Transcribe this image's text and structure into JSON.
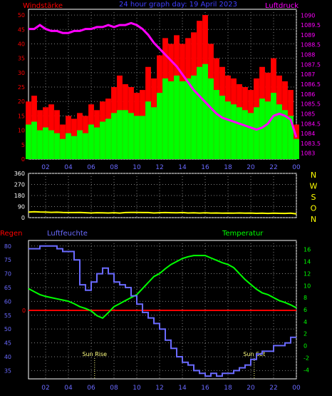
{
  "colors": {
    "background": "#000000",
    "grid": "#808080",
    "axis_red": "#ff0000",
    "axis_magenta": "#ff00ff",
    "axis_blue": "#6a6aff",
    "axis_green": "#00ff00",
    "axis_yellow": "#ffff00",
    "sun_marker": "#ffff80"
  },
  "chart_data": [
    {
      "id": "wind",
      "type": "bar",
      "title": "24 hour graph day: 19 April 2023",
      "left_label": "Windstärke",
      "right_label": "Luftdruck",
      "x_ticks": [
        "02",
        "04",
        "06",
        "08",
        "10",
        "12",
        "14",
        "16",
        "18",
        "20",
        "22",
        "00"
      ],
      "left_ticks": [
        "0",
        "5",
        "10",
        "15",
        "20",
        "25",
        "30",
        "35",
        "40",
        "45",
        "50"
      ],
      "right_ticks": [
        "1083",
        "1083.5",
        "1084",
        "1084.5",
        "1085",
        "1085.5",
        "1086",
        "1086.5",
        "1087",
        "1087.5",
        "1088",
        "1088.5",
        "1089",
        "1089.5",
        "1090"
      ],
      "xlim": [
        0.5,
        24
      ],
      "ylim_left": [
        0,
        52
      ],
      "ylim_right": [
        1082.7,
        1090.3
      ],
      "series": [
        {
          "name": "Windstärke",
          "style": "gust_bars_red",
          "x": [
            0.5,
            1,
            1.5,
            2,
            2.5,
            3,
            3.5,
            4,
            4.5,
            5,
            5.5,
            6,
            6.5,
            7,
            7.5,
            8,
            8.5,
            9,
            9.5,
            10,
            10.5,
            11,
            11.5,
            12,
            12.5,
            13,
            13.5,
            14,
            14.5,
            15,
            15.5,
            16,
            16.5,
            17,
            17.5,
            18,
            18.5,
            19,
            19.5,
            20,
            20.5,
            21,
            21.5,
            22,
            22.5,
            23,
            23.5,
            24
          ],
          "values": [
            20,
            22,
            17,
            18,
            19,
            17,
            12,
            15,
            14,
            16,
            15,
            19,
            17,
            20,
            21,
            25,
            29,
            26,
            25,
            23,
            24,
            32,
            28,
            36,
            42,
            40,
            43,
            40,
            42,
            44,
            48,
            50,
            40,
            35,
            32,
            29,
            28,
            26,
            25,
            24,
            28,
            32,
            30,
            35,
            29,
            27,
            24,
            12
          ]
        },
        {
          "name": "Windstärke",
          "style": "mean_bars_green",
          "x": [
            0.5,
            1,
            1.5,
            2,
            2.5,
            3,
            3.5,
            4,
            4.5,
            5,
            5.5,
            6,
            6.5,
            7,
            7.5,
            8,
            8.5,
            9,
            9.5,
            10,
            10.5,
            11,
            11.5,
            12,
            12.5,
            13,
            13.5,
            14,
            14.5,
            15,
            15.5,
            16,
            16.5,
            17,
            17.5,
            18,
            18.5,
            19,
            19.5,
            20,
            20.5,
            21,
            21.5,
            22,
            22.5,
            23,
            23.5,
            24
          ],
          "values": [
            12,
            13,
            10,
            11,
            10,
            9,
            7,
            9,
            8,
            10,
            9,
            12,
            11,
            13,
            14,
            16,
            17,
            17,
            16,
            15,
            15,
            20,
            18,
            23,
            28,
            27,
            29,
            27,
            28,
            29,
            32,
            33,
            28,
            24,
            22,
            20,
            19,
            18,
            17,
            16,
            18,
            21,
            20,
            23,
            19,
            17,
            15,
            7
          ]
        },
        {
          "name": "Luftdruck",
          "style": "line_magenta",
          "x": [
            0.5,
            1.0,
            1.5,
            2.0,
            2.5,
            3.0,
            3.5,
            4.0,
            4.5,
            5.0,
            5.5,
            6.0,
            6.5,
            7.0,
            7.5,
            8.0,
            8.5,
            9.0,
            9.5,
            10.0,
            10.5,
            11.0,
            11.5,
            12.0,
            12.5,
            13.0,
            13.5,
            14.0,
            14.5,
            15.0,
            15.5,
            16.0,
            16.5,
            17.0,
            17.5,
            18.0,
            18.5,
            19.0,
            19.5,
            20.0,
            20.5,
            21.0,
            21.5,
            22.0,
            22.5,
            23.0,
            23.5,
            24.0
          ],
          "values": [
            1089.3,
            1089.3,
            1089.5,
            1089.3,
            1089.2,
            1089.2,
            1089.1,
            1089.1,
            1089.2,
            1089.2,
            1089.3,
            1089.3,
            1089.4,
            1089.4,
            1089.5,
            1089.4,
            1089.5,
            1089.5,
            1089.6,
            1089.5,
            1089.3,
            1089.0,
            1088.6,
            1088.3,
            1088.0,
            1087.7,
            1087.4,
            1087.0,
            1086.6,
            1086.2,
            1085.9,
            1085.6,
            1085.3,
            1085.0,
            1084.8,
            1084.7,
            1084.6,
            1084.5,
            1084.4,
            1084.3,
            1084.2,
            1084.3,
            1084.5,
            1084.9,
            1085.0,
            1084.9,
            1084.7,
            1083.8
          ]
        }
      ]
    },
    {
      "id": "direction",
      "type": "line",
      "left_ticks": [
        "0",
        "90",
        "180",
        "270",
        "360"
      ],
      "direction_labels": [
        "N",
        "W",
        "S",
        "O",
        "N"
      ],
      "xlim": [
        0.5,
        24
      ],
      "ylim": [
        0,
        360
      ],
      "series": [
        {
          "name": "Windrichtung",
          "style": "line_yellow",
          "x": [
            0.5,
            1,
            1.5,
            2,
            2.5,
            3,
            3.5,
            4,
            4.5,
            5,
            5.5,
            6,
            6.5,
            7,
            7.5,
            8,
            8.5,
            9,
            9.5,
            10,
            10.5,
            11,
            11.5,
            12,
            12.5,
            13,
            13.5,
            14,
            14.5,
            15,
            15.5,
            16,
            16.5,
            17,
            17.5,
            18,
            18.5,
            19,
            19.5,
            20,
            20.5,
            21,
            21.5,
            22,
            22.5,
            23,
            23.5,
            24
          ],
          "values": [
            45,
            48,
            46,
            45,
            43,
            44,
            42,
            41,
            41,
            42,
            40,
            38,
            40,
            39,
            38,
            40,
            37,
            41,
            42,
            42,
            41,
            41,
            38,
            40,
            41,
            40,
            39,
            41,
            38,
            39,
            37,
            39,
            37,
            38,
            36,
            37,
            36,
            38,
            36,
            37,
            35,
            36,
            34,
            36,
            35,
            34,
            36,
            30
          ]
        }
      ]
    },
    {
      "id": "humidity_temp",
      "type": "line",
      "left_title_1": "Regen",
      "left_title_2": "Luftfeuchte",
      "right_title": "Temperatur",
      "left_ticks": [
        "35",
        "40",
        "45",
        "50",
        "55",
        "60",
        "65",
        "70",
        "75",
        "80"
      ],
      "right_ticks": [
        "-4",
        "-2",
        "0",
        "2",
        "4",
        "6",
        "8",
        "10",
        "12",
        "14",
        "16"
      ],
      "rain_tick": "0",
      "annotations": [
        "Sun Rise",
        "Sun Set"
      ],
      "sunrise_x": 6.3,
      "sunset_x": 20.3,
      "xlim": [
        0.5,
        24
      ],
      "ylim_left": [
        32,
        82
      ],
      "ylim_right": [
        -5.5,
        17.5
      ],
      "series": [
        {
          "name": "Luftfeuchte",
          "style": "step_blue",
          "x": [
            0.5,
            1,
            1.5,
            2,
            2.5,
            3,
            3.5,
            4,
            4.5,
            5,
            5.5,
            6,
            6.5,
            7,
            7.5,
            8,
            8.5,
            9,
            9.5,
            10,
            10.5,
            11,
            11.5,
            12,
            12.5,
            13,
            13.5,
            14,
            14.5,
            15,
            15.5,
            16,
            16.5,
            17,
            17.5,
            18,
            18.5,
            19,
            19.5,
            20,
            20.5,
            21,
            21.5,
            22,
            22.5,
            23,
            23.5,
            24
          ],
          "values": [
            79,
            79,
            80,
            80,
            80,
            79,
            78,
            78,
            75,
            66,
            64,
            67,
            70,
            72,
            70,
            67,
            66,
            65,
            62,
            59,
            56,
            54,
            52,
            50,
            46,
            43,
            40,
            38,
            37,
            35,
            34,
            33,
            34,
            33,
            34,
            34,
            35,
            36,
            37,
            39,
            41,
            42,
            42,
            44,
            44,
            45,
            47,
            47
          ]
        },
        {
          "name": "Temperatur",
          "style": "line_green",
          "x": [
            0.5,
            1,
            1.5,
            2,
            2.5,
            3,
            3.5,
            4,
            4.5,
            5,
            5.5,
            6,
            6.5,
            7,
            7.5,
            8,
            8.5,
            9,
            9.5,
            10,
            10.5,
            11,
            11.5,
            12,
            12.5,
            13,
            13.5,
            14,
            14.5,
            15,
            15.5,
            16,
            16.5,
            17,
            17.5,
            18,
            18.5,
            19,
            19.5,
            20,
            20.5,
            21,
            21.5,
            22,
            22.5,
            23,
            23.5,
            24
          ],
          "values": [
            9.5,
            9.0,
            8.5,
            8.2,
            8.0,
            7.8,
            7.6,
            7.4,
            7.0,
            6.5,
            6.2,
            5.8,
            5.0,
            4.6,
            5.5,
            6.5,
            7.0,
            7.5,
            8.0,
            8.5,
            9.5,
            10.5,
            11.5,
            12.0,
            12.8,
            13.5,
            14.0,
            14.5,
            14.8,
            15.0,
            15.0,
            15.0,
            14.6,
            14.2,
            13.8,
            13.5,
            13.0,
            12.0,
            11.0,
            10.2,
            9.4,
            8.8,
            8.5,
            8.0,
            7.5,
            7.2,
            6.8,
            6.3
          ]
        }
      ]
    }
  ]
}
